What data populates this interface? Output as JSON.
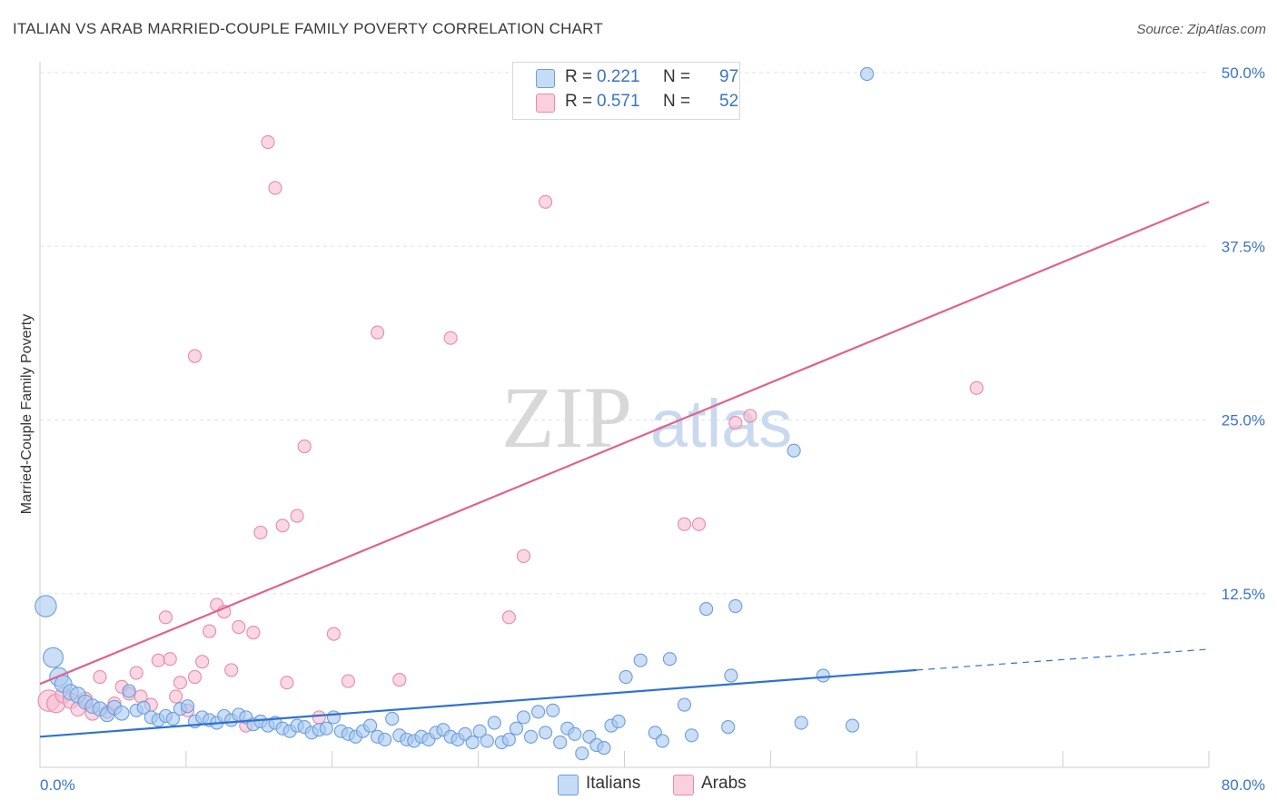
{
  "title": "ITALIAN VS ARAB MARRIED-COUPLE FAMILY POVERTY CORRELATION CHART",
  "source": "Source: ZipAtlas.com",
  "watermark": {
    "zip": "ZIP",
    "atlas": "atlas"
  },
  "legend": {
    "italians": {
      "r_label": "R =",
      "r_value": "0.221",
      "n_label": "N =",
      "n_value": "97"
    },
    "arabs": {
      "r_label": "R =",
      "r_value": "0.571",
      "n_label": "N =",
      "n_value": "52"
    }
  },
  "colors": {
    "italians_fill": "#a9c8ef",
    "italians_stroke": "#6a9ede",
    "italians_line": "#2f72d0",
    "arabs_fill": "#f6bcd0",
    "arabs_stroke": "#e98aab",
    "arabs_line": "#e0628e",
    "tick_text": "#3b74c6",
    "grid": "#e3e3e3"
  },
  "chart_data": {
    "type": "scatter",
    "title": "ITALIAN VS ARAB MARRIED-COUPLE FAMILY POVERTY CORRELATION CHART",
    "xlabel": "",
    "ylabel": "Married-Couple Family Poverty",
    "xlim": [
      0,
      80
    ],
    "ylim": [
      0,
      50
    ],
    "x_tick_labels": [
      {
        "value": 0,
        "label": "0.0%"
      },
      {
        "value": 80,
        "label": "80.0%"
      }
    ],
    "y_tick_labels": [
      {
        "value": 12.5,
        "label": "12.5%"
      },
      {
        "value": 25,
        "label": "25.0%"
      },
      {
        "value": 37.5,
        "label": "37.5%"
      },
      {
        "value": 50,
        "label": "50.0%"
      }
    ],
    "grid": true,
    "legend_position": "bottom-center",
    "series": [
      {
        "name": "Italians",
        "trend": {
          "x0": 0,
          "y0": 2.2,
          "x1": 60,
          "y1": 7.0,
          "dashed_to_x": 80,
          "dashed_to_y": 8.5
        },
        "points": [
          [
            0.4,
            11.6,
            15
          ],
          [
            0.9,
            7.9,
            14
          ],
          [
            1.3,
            6.5,
            13
          ],
          [
            1.6,
            6.0,
            12
          ],
          [
            2.1,
            5.4,
            11
          ],
          [
            2.6,
            5.2,
            11
          ],
          [
            3.1,
            4.7,
            10
          ],
          [
            3.6,
            4.4,
            10
          ],
          [
            4.1,
            4.2,
            10
          ],
          [
            4.6,
            3.8,
            10
          ],
          [
            5.1,
            4.3,
            10
          ],
          [
            5.6,
            3.9,
            10
          ],
          [
            6.1,
            5.5,
            9
          ],
          [
            6.6,
            4.1,
            9
          ],
          [
            7.1,
            4.3,
            9
          ],
          [
            7.6,
            3.6,
            9
          ],
          [
            8.1,
            3.4,
            9
          ],
          [
            8.6,
            3.7,
            9
          ],
          [
            9.1,
            3.5,
            9
          ],
          [
            9.6,
            4.2,
            9
          ],
          [
            10.1,
            4.4,
            9
          ],
          [
            10.6,
            3.3,
            9
          ],
          [
            11.1,
            3.6,
            9
          ],
          [
            11.6,
            3.4,
            9
          ],
          [
            12.1,
            3.2,
            9
          ],
          [
            12.6,
            3.7,
            9
          ],
          [
            13.1,
            3.4,
            9
          ],
          [
            13.6,
            3.8,
            9
          ],
          [
            14.1,
            3.6,
            9
          ],
          [
            14.6,
            3.1,
            9
          ],
          [
            15.1,
            3.3,
            9
          ],
          [
            15.6,
            3.0,
            9
          ],
          [
            16.1,
            3.2,
            9
          ],
          [
            16.6,
            2.8,
            9
          ],
          [
            17.1,
            2.6,
            9
          ],
          [
            17.6,
            3.0,
            9
          ],
          [
            18.1,
            2.9,
            9
          ],
          [
            18.6,
            2.5,
            9
          ],
          [
            19.1,
            2.7,
            9
          ],
          [
            19.6,
            2.8,
            9
          ],
          [
            20.1,
            3.6,
            9
          ],
          [
            20.6,
            2.6,
            9
          ],
          [
            21.1,
            2.4,
            9
          ],
          [
            21.6,
            2.2,
            9
          ],
          [
            22.1,
            2.6,
            9
          ],
          [
            22.6,
            3.0,
            9
          ],
          [
            23.1,
            2.2,
            9
          ],
          [
            23.6,
            2.0,
            9
          ],
          [
            24.1,
            3.5,
            9
          ],
          [
            24.6,
            2.3,
            9
          ],
          [
            25.1,
            2.0,
            9
          ],
          [
            25.6,
            1.9,
            9
          ],
          [
            26.1,
            2.2,
            9
          ],
          [
            26.6,
            2.0,
            9
          ],
          [
            27.1,
            2.5,
            9
          ],
          [
            27.6,
            2.7,
            9
          ],
          [
            28.1,
            2.2,
            9
          ],
          [
            28.6,
            2.0,
            9
          ],
          [
            29.1,
            2.4,
            9
          ],
          [
            29.6,
            1.8,
            9
          ],
          [
            30.1,
            2.6,
            9
          ],
          [
            30.6,
            1.9,
            9
          ],
          [
            31.1,
            3.2,
            9
          ],
          [
            31.6,
            1.8,
            9
          ],
          [
            32.1,
            2.0,
            9
          ],
          [
            32.6,
            2.8,
            9
          ],
          [
            33.1,
            3.6,
            9
          ],
          [
            33.6,
            2.2,
            9
          ],
          [
            34.1,
            4.0,
            9
          ],
          [
            34.6,
            2.5,
            9
          ],
          [
            35.1,
            4.1,
            9
          ],
          [
            35.6,
            1.8,
            9
          ],
          [
            36.1,
            2.8,
            9
          ],
          [
            36.6,
            2.4,
            9
          ],
          [
            37.1,
            1.0,
            9
          ],
          [
            37.6,
            2.2,
            9
          ],
          [
            38.1,
            1.6,
            9
          ],
          [
            38.6,
            1.4,
            9
          ],
          [
            39.1,
            3.0,
            9
          ],
          [
            39.6,
            3.3,
            9
          ],
          [
            40.1,
            6.5,
            9
          ],
          [
            41.1,
            7.7,
            9
          ],
          [
            42.1,
            2.5,
            9
          ],
          [
            42.6,
            1.9,
            9
          ],
          [
            43.1,
            7.8,
            9
          ],
          [
            44.1,
            4.5,
            9
          ],
          [
            44.6,
            2.3,
            9
          ],
          [
            45.6,
            11.4,
            9
          ],
          [
            47.1,
            2.9,
            9
          ],
          [
            47.3,
            6.6,
            9
          ],
          [
            47.6,
            11.6,
            9
          ],
          [
            51.6,
            22.8,
            9
          ],
          [
            52.1,
            3.2,
            9
          ],
          [
            53.6,
            6.6,
            9
          ],
          [
            55.6,
            3.0,
            9
          ],
          [
            56.6,
            49.9,
            9
          ]
        ]
      },
      {
        "name": "Arabs",
        "trend": {
          "x0": 0,
          "y0": 6.0,
          "x1": 80,
          "y1": 40.7
        },
        "points": [
          [
            0.6,
            4.8,
            15
          ],
          [
            1.1,
            4.6,
            13
          ],
          [
            1.6,
            5.2,
            11
          ],
          [
            2.1,
            4.8,
            11
          ],
          [
            2.6,
            4.2,
            10
          ],
          [
            3.1,
            4.9,
            10
          ],
          [
            3.6,
            3.9,
            10
          ],
          [
            4.1,
            6.5,
            9
          ],
          [
            4.6,
            4.0,
            9
          ],
          [
            5.1,
            4.6,
            9
          ],
          [
            5.6,
            5.8,
            9
          ],
          [
            6.1,
            5.3,
            9
          ],
          [
            6.6,
            6.8,
            9
          ],
          [
            6.9,
            5.1,
            9
          ],
          [
            7.6,
            4.5,
            9
          ],
          [
            8.1,
            7.7,
            9
          ],
          [
            8.6,
            10.8,
            9
          ],
          [
            8.9,
            7.8,
            9
          ],
          [
            9.3,
            5.1,
            9
          ],
          [
            9.6,
            6.1,
            9
          ],
          [
            10.1,
            4.1,
            9
          ],
          [
            10.6,
            6.5,
            9
          ],
          [
            11.1,
            7.6,
            9
          ],
          [
            11.6,
            9.8,
            9
          ],
          [
            12.1,
            11.7,
            9
          ],
          [
            12.6,
            11.2,
            9
          ],
          [
            13.1,
            7.0,
            9
          ],
          [
            13.6,
            10.1,
            9
          ],
          [
            14.1,
            3.0,
            9
          ],
          [
            14.6,
            9.7,
            9
          ],
          [
            15.1,
            16.9,
            9
          ],
          [
            15.6,
            45.0,
            9
          ],
          [
            16.1,
            41.7,
            9
          ],
          [
            16.6,
            17.4,
            9
          ],
          [
            16.9,
            6.1,
            9
          ],
          [
            17.6,
            18.1,
            9
          ],
          [
            18.1,
            23.1,
            9
          ],
          [
            19.1,
            3.6,
            9
          ],
          [
            20.1,
            9.6,
            9
          ],
          [
            21.1,
            6.2,
            9
          ],
          [
            23.1,
            31.3,
            9
          ],
          [
            24.6,
            6.3,
            9
          ],
          [
            28.1,
            30.9,
            9
          ],
          [
            32.1,
            10.8,
            9
          ],
          [
            33.1,
            15.2,
            9
          ],
          [
            34.6,
            40.7,
            9
          ],
          [
            44.1,
            17.5,
            9
          ],
          [
            45.1,
            17.5,
            9
          ],
          [
            47.6,
            24.8,
            9
          ],
          [
            48.6,
            25.3,
            9
          ],
          [
            64.1,
            27.3,
            9
          ],
          [
            10.6,
            29.6,
            9
          ]
        ]
      }
    ]
  }
}
